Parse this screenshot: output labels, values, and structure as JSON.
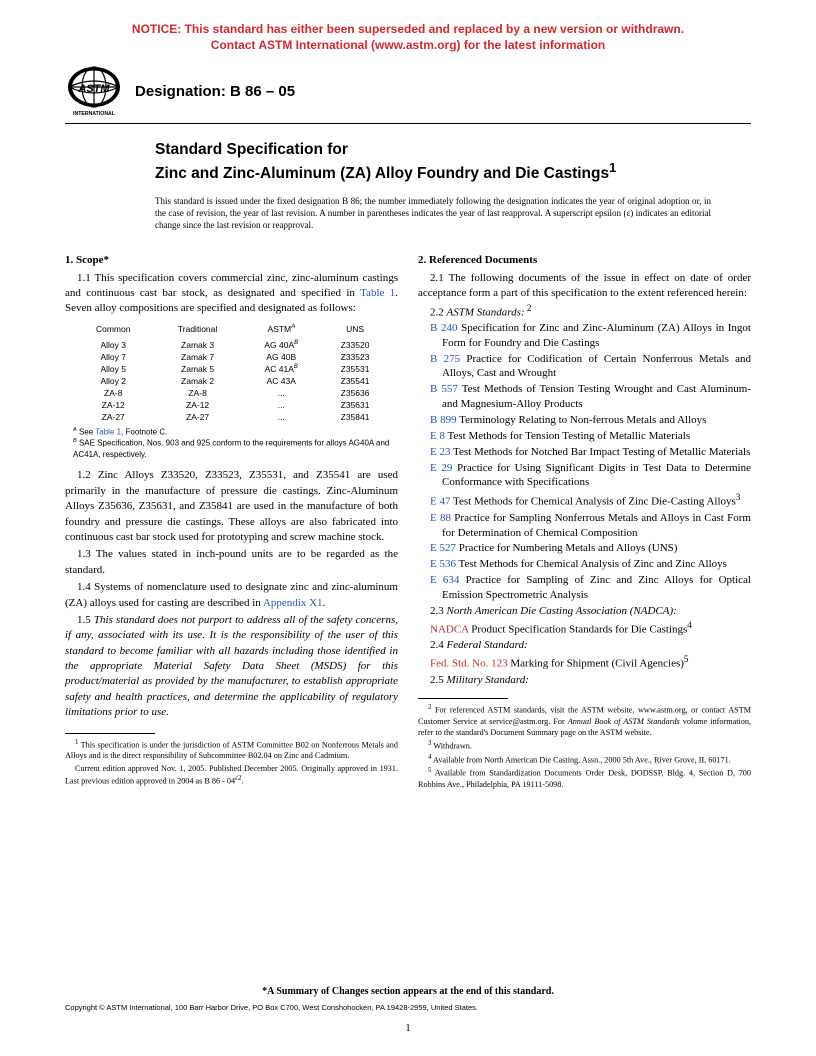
{
  "notice_l1": "NOTICE: This standard has either been superseded and replaced by a new version or withdrawn.",
  "notice_l2": "Contact ASTM International (www.astm.org) for the latest information",
  "logo_text": "INTERNATIONAL",
  "designation": "Designation: B 86 – 05",
  "title_l1": "Standard Specification for",
  "title_l2": "Zinc and Zinc-Aluminum (ZA) Alloy Foundry and Die Castings",
  "title_sup": "1",
  "issued": "This standard is issued under the fixed designation B 86; the number immediately following the designation indicates the year of original adoption or, in the case of revision, the year of last revision. A number in parentheses indicates the year of last reapproval. A superscript epsilon (ε) indicates an editorial change since the last revision or reapproval.",
  "scope_head": "1. Scope*",
  "scope": {
    "p11a": "1.1 This specification covers commercial zinc, zinc-aluminum castings and continuous cast bar stock, as designated and specified in ",
    "p11_link": "Table 1",
    "p11b": ". Seven alloy compositions are specified and designated as follows:",
    "p12": "1.2 Zinc Alloys Z33520, Z33523, Z35531, and Z35541 are used primarily in the manufacture of pressure die castings. Zinc-Aluminum Alloys Z35636, Z35631, and Z35841 are used in the manufacture of both foundry and pressure die castings. These alloys are also fabricated into continuous cast bar stock used for prototyping and screw machine stock.",
    "p13": "1.3 The values stated in inch-pound units are to be regarded as the standard.",
    "p14a": "1.4 Systems of nomenclature used to designate zinc and zinc-aluminum (ZA) alloys used for casting are described in ",
    "p14_link": "Appendix X1",
    "p14b": ".",
    "p15": "1.5 This standard does not purport to address all of the safety concerns, if any, associated with its use. It is the responsibility of the user of this standard to become familiar with all hazards including those identified in the appropriate Material Safety Data Sheet (MSDS) for this product/material as provided by the manufacturer, to establish appropriate safety and health practices, and determine the applicability of regulatory limitations prior to use."
  },
  "table": {
    "headers": [
      "Common",
      "Traditional",
      "ASTM",
      "UNS"
    ],
    "astm_sup": "A",
    "rows": [
      [
        "Alloy 3",
        "Zamak 3",
        "AG 40A",
        "B",
        "Z33520"
      ],
      [
        "Alloy 7",
        "Zamak 7",
        "AG 40B",
        "",
        "Z33523"
      ],
      [
        "Alloy 5",
        "Zamak 5",
        "AC 41A",
        "B",
        "Z35531"
      ],
      [
        "Alloy 2",
        "Zamak 2",
        "AC 43A",
        "",
        "Z35541"
      ],
      [
        "ZA-8",
        "ZA-8",
        "...",
        "",
        "Z35636"
      ],
      [
        "ZA-12",
        "ZA-12",
        "...",
        "",
        "Z35631"
      ],
      [
        "ZA-27",
        "ZA-27",
        "...",
        "",
        "Z35841"
      ]
    ],
    "noteA_a": " See ",
    "noteA_link": "Table 1",
    "noteA_b": ", Footnote C.",
    "noteB": " SAE Specification, Nos. 903 and 925 conform to the requirements for alloys AG40A and AC41A, respectively."
  },
  "refs_head": "2. Referenced Documents",
  "refs": {
    "p21": "2.1 The following documents of the issue in effect on date of order acceptance form a part of this specification to the extent referenced herein:",
    "p22_n": "2.2 ",
    "p22_lbl": "ASTM Standards:",
    "p22_sup": " 2",
    "items": [
      {
        "code": "B 240",
        "text": " Specification for Zinc and Zinc-Aluminum (ZA) Alloys in Ingot Form for Foundry and Die Castings"
      },
      {
        "code": "B 275",
        "text": " Practice for Codification of Certain Nonferrous Metals and Alloys, Cast and Wrought"
      },
      {
        "code": "B 557",
        "text": " Test Methods of Tension Testing Wrought and Cast Aluminum- and Magnesium-Alloy Products"
      },
      {
        "code": "B 899",
        "text": " Terminology Relating to Non-ferrous Metals and Alloys"
      },
      {
        "code": "E 8",
        "text": " Test Methods for Tension Testing of Metallic Materials"
      },
      {
        "code": "E 23",
        "text": " Test Methods for Notched Bar Impact Testing of Metallic Materials"
      },
      {
        "code": "E 29",
        "text": " Practice for Using Significant Digits in Test Data to Determine Conformance with Specifications"
      },
      {
        "code": "E 47",
        "text": " Test Methods for Chemical Analysis of Zinc Die-Casting Alloys",
        "sup": "3"
      },
      {
        "code": "E 88",
        "text": " Practice for Sampling Nonferrous Metals and Alloys in Cast Form for Determination of Chemical Composition"
      },
      {
        "code": "E 527",
        "text": " Practice for Numbering Metals and Alloys (UNS)"
      },
      {
        "code": "E 536",
        "text": " Test Methods for Chemical Analysis of Zinc and Zinc Alloys"
      },
      {
        "code": "E 634",
        "text": " Practice for Sampling of Zinc and Zinc Alloys for Optical Emission Spectrometric Analysis"
      }
    ],
    "p23_n": "2.3 ",
    "p23_lbl": "North American Die Casting Association (NADCA):",
    "nadca_code": "NADCA",
    "nadca_text": " Product Specification Standards for Die Castings",
    "nadca_sup": "4",
    "p24_n": "2.4 ",
    "p24_lbl": "Federal Standard:",
    "fed_code": "Fed. Std. No. 123",
    "fed_text": " Marking for Shipment (Civil Agencies)",
    "fed_sup": "5",
    "p25_n": "2.5 ",
    "p25_lbl": "Military Standard:"
  },
  "left_footnotes": {
    "f1": " This specification is under the jurisdiction of ASTM Committee B02 on Nonferrous Metals and Alloys and is the direct responsibility of Subcommittee B02.04 on Zinc and Cadmium.",
    "f1b_a": "Current edition approved Nov. 1, 2005. Published December 2005. Originally approved in 1931. Last previous edition approved in 2004 as B 86 - 04",
    "f1b_sup": "ε2",
    "f1b_b": "."
  },
  "right_footnotes": {
    "f2a": " For referenced ASTM standards, visit the ASTM website, www.astm.org, or contact ASTM Customer Service at service@astm.org. For ",
    "f2_i": "Annual Book of ASTM Standards",
    "f2b": " volume information, refer to the standard's Document Summary page on the ASTM website.",
    "f3": " Withdrawn.",
    "f4": " Available from North American Die Casting, Assn., 2000 5th Ave., River Grove, IL 60171.",
    "f5": " Available from Standardization Documents Order Desk, DODSSP, Bldg. 4, Section D, 700 Robbins Ave., Philadelphia, PA 19111-5098."
  },
  "summary_note": "*A Summary of Changes section appears at the end of this standard.",
  "copyright": "Copyright © ASTM International, 100 Barr Harbor Drive, PO Box C700, West Conshohocken, PA 19428-2959, United States.",
  "page_num": "1",
  "colors": {
    "notice_red": "#d4282c",
    "link_blue": "#2754b5",
    "ref_red": "#c72c31"
  }
}
